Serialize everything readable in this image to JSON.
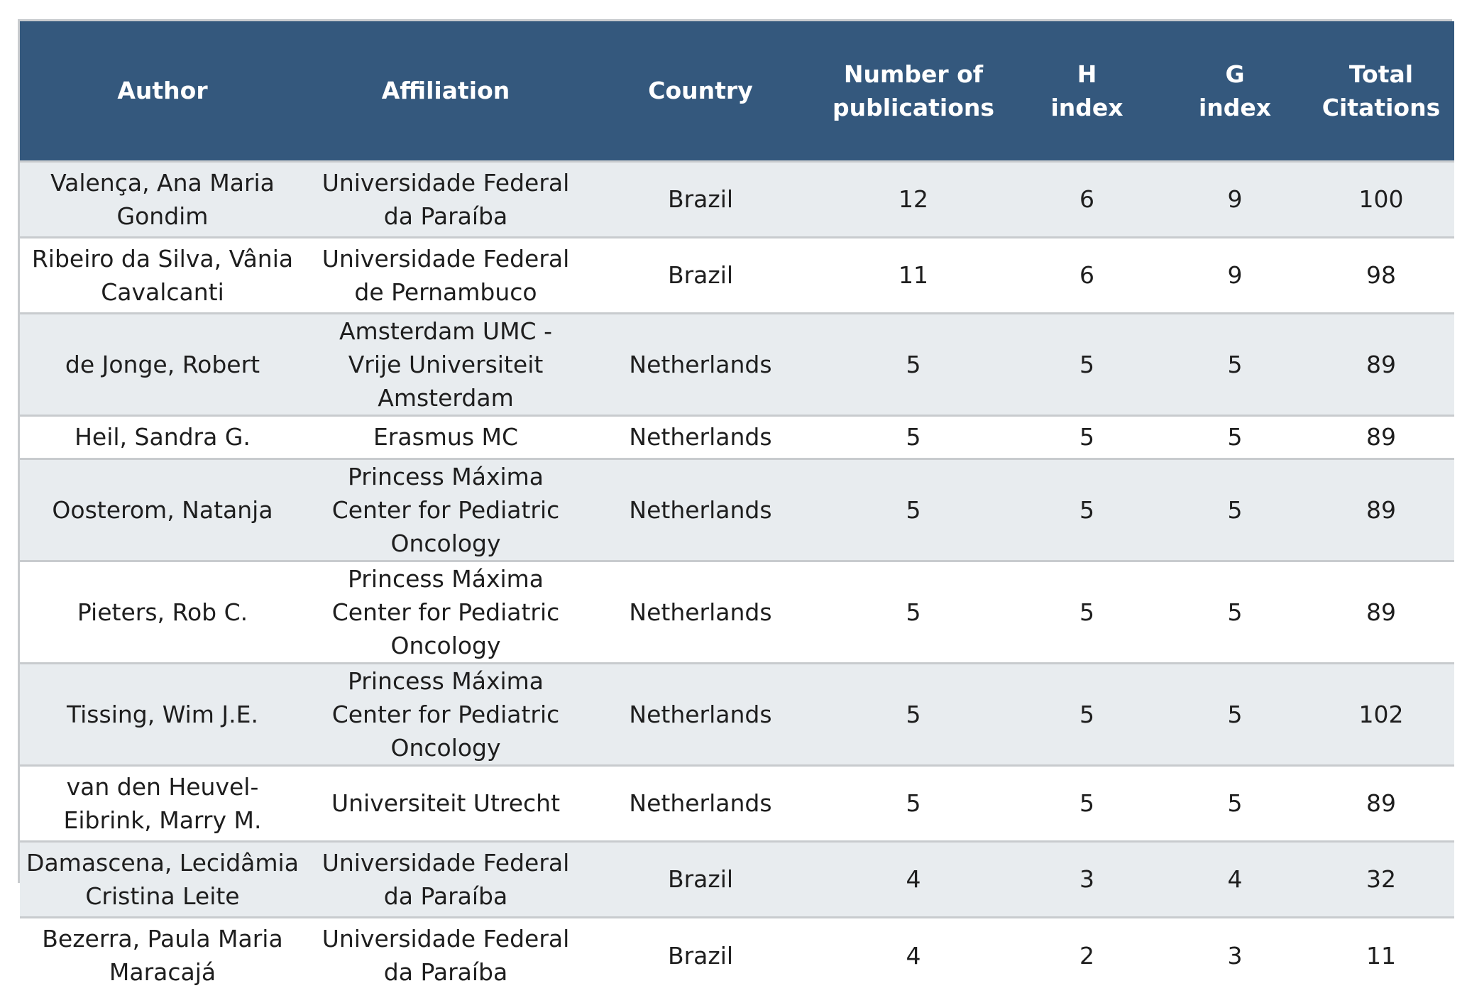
{
  "table": {
    "headers": {
      "author": "Author",
      "affiliation": "Affiliation",
      "country": "Country",
      "publications": [
        "Number of",
        "publications"
      ],
      "h_index": [
        "H",
        "index"
      ],
      "g_index": [
        "G",
        "index"
      ],
      "total_citations": [
        "Total",
        "Citations"
      ]
    },
    "rows": [
      {
        "author": "Valença, Ana Maria Gondim",
        "affiliation": "Universidade Federal da Paraíba",
        "country": "Brazil",
        "publications": "12",
        "h_index": "6",
        "g_index": "9",
        "total_citations": "100"
      },
      {
        "author": "Ribeiro da Silva, Vânia Cavalcanti",
        "affiliation": "Universidade Federal de Pernambuco",
        "country": "Brazil",
        "publications": "11",
        "h_index": "6",
        "g_index": "9",
        "total_citations": "98"
      },
      {
        "author": "de Jonge, Robert",
        "affiliation": "Amsterdam UMC - Vrije Universiteit Amsterdam",
        "country": "Netherlands",
        "publications": "5",
        "h_index": "5",
        "g_index": "5",
        "total_citations": "89"
      },
      {
        "author": "Heil, Sandra G.",
        "affiliation": "Erasmus MC",
        "country": "Netherlands",
        "publications": "5",
        "h_index": "5",
        "g_index": "5",
        "total_citations": "89"
      },
      {
        "author": "Oosterom, Natanja",
        "affiliation": "Princess Máxima Center for Pediatric Oncology",
        "country": "Netherlands",
        "publications": "5",
        "h_index": "5",
        "g_index": "5",
        "total_citations": "89"
      },
      {
        "author": "Pieters, Rob C.",
        "affiliation": "Princess Máxima Center for Pediatric Oncology",
        "country": "Netherlands",
        "publications": "5",
        "h_index": "5",
        "g_index": "5",
        "total_citations": "89"
      },
      {
        "author": "Tissing, Wim J.E.",
        "affiliation": "Princess Máxima Center for Pediatric Oncology",
        "country": "Netherlands",
        "publications": "5",
        "h_index": "5",
        "g_index": "5",
        "total_citations": "102"
      },
      {
        "author": "van den Heuvel-Eibrink, Marry M.",
        "affiliation": "Universiteit Utrecht",
        "country": "Netherlands",
        "publications": "5",
        "h_index": "5",
        "g_index": "5",
        "total_citations": "89"
      },
      {
        "author": "Damascena, Lecidâmia Cristina Leite",
        "affiliation": "Universidade Federal da Paraíba",
        "country": "Brazil",
        "publications": "4",
        "h_index": "3",
        "g_index": "4",
        "total_citations": "32"
      },
      {
        "author": "Bezerra, Paula Maria Maracajá",
        "affiliation": "Universidade Federal da Paraíba",
        "country": "Brazil",
        "publications": "4",
        "h_index": "2",
        "g_index": "3",
        "total_citations": "11"
      }
    ]
  },
  "colors": {
    "header_bg": "#34587d",
    "header_text": "#ffffff",
    "row_alt_bg": "#e8ecef",
    "border": "#c8cbce"
  }
}
